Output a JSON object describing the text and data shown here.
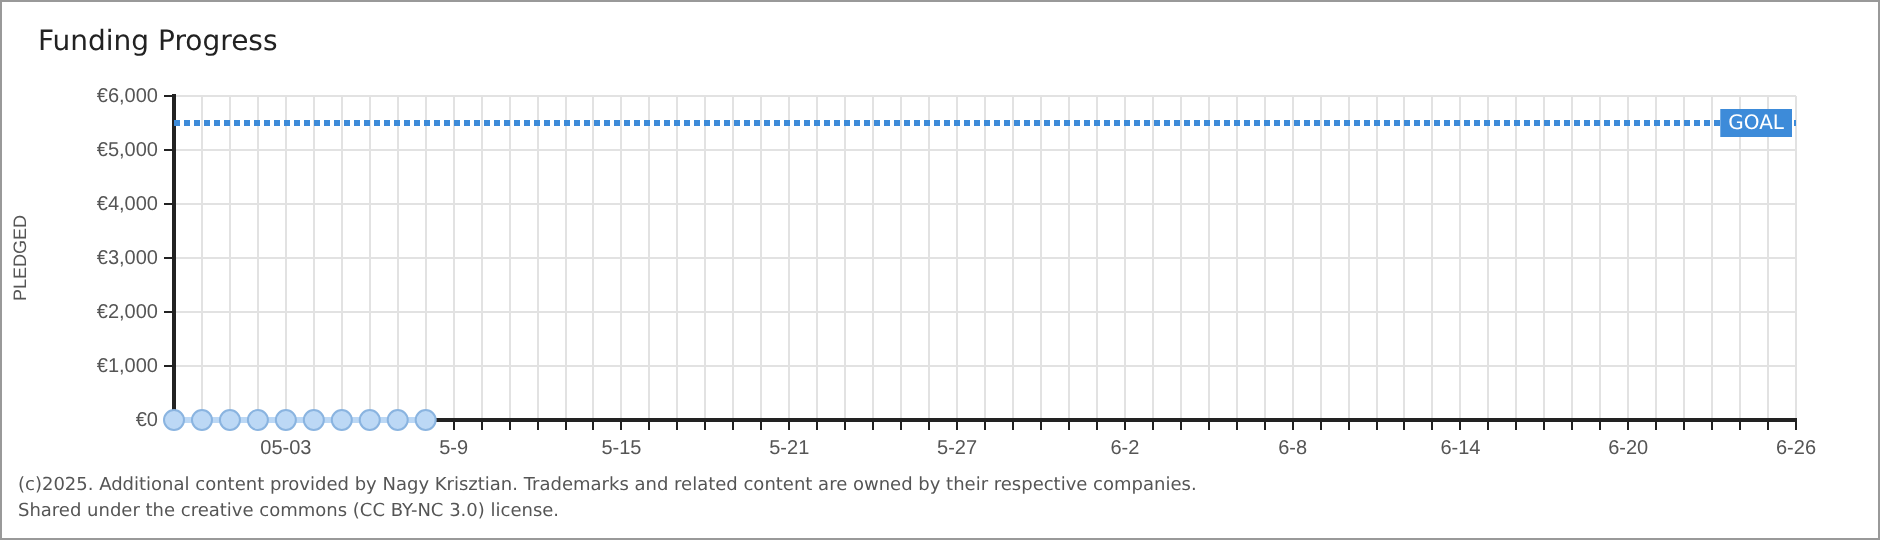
{
  "chart_data": {
    "type": "line",
    "title": "Funding Progress",
    "ylabel": "PLEDGED",
    "x": [
      "--04-29",
      "--04-30",
      "--05-01",
      "--05-02",
      "--05-03",
      "--05-04",
      "--05-05",
      "--05-06",
      "--05-07",
      "--05-08"
    ],
    "series": [
      {
        "color": "#bcd8f5",
        "values": [
          0,
          0,
          0,
          0,
          0,
          0,
          0,
          0,
          0,
          0
        ]
      }
    ],
    "marker": "circle",
    "line_style": "solid",
    "xlim": [
      "--04-29",
      "--06-26"
    ],
    "xticks": [
      {
        "value": "--04-29",
        "label": null
      },
      {
        "value": "--04-30",
        "label": null
      },
      {
        "value": "--05-01",
        "label": null
      },
      {
        "value": "--05-02",
        "label": null
      },
      {
        "value": "--05-03",
        "label": "05-03"
      },
      {
        "value": "--05-04",
        "label": null
      },
      {
        "value": "--05-05",
        "label": null
      },
      {
        "value": "--05-06",
        "label": null
      },
      {
        "value": "--05-07",
        "label": null
      },
      {
        "value": "--05-08",
        "label": null
      },
      {
        "value": "--05-09",
        "label": "5-9"
      },
      {
        "value": "--05-10",
        "label": null
      },
      {
        "value": "--05-11",
        "label": null
      },
      {
        "value": "--05-12",
        "label": null
      },
      {
        "value": "--05-13",
        "label": null
      },
      {
        "value": "--05-14",
        "label": null
      },
      {
        "value": "--05-15",
        "label": "5-15"
      },
      {
        "value": "--05-16",
        "label": null
      },
      {
        "value": "--05-17",
        "label": null
      },
      {
        "value": "--05-18",
        "label": null
      },
      {
        "value": "--05-19",
        "label": null
      },
      {
        "value": "--05-20",
        "label": null
      },
      {
        "value": "--05-21",
        "label": "5-21"
      },
      {
        "value": "--05-22",
        "label": null
      },
      {
        "value": "--05-23",
        "label": null
      },
      {
        "value": "--05-24",
        "label": null
      },
      {
        "value": "--05-25",
        "label": null
      },
      {
        "value": "--05-26",
        "label": null
      },
      {
        "value": "--05-27",
        "label": "5-27"
      },
      {
        "value": "--05-28",
        "label": null
      },
      {
        "value": "--05-29",
        "label": null
      },
      {
        "value": "--05-30",
        "label": null
      },
      {
        "value": "--05-31",
        "label": null
      },
      {
        "value": "--06-01",
        "label": null
      },
      {
        "value": "--06-02",
        "label": "6-2"
      },
      {
        "value": "--06-03",
        "label": null
      },
      {
        "value": "--06-04",
        "label": null
      },
      {
        "value": "--06-05",
        "label": null
      },
      {
        "value": "--06-06",
        "label": null
      },
      {
        "value": "--06-07",
        "label": null
      },
      {
        "value": "--06-08",
        "label": "6-8"
      },
      {
        "value": "--06-09",
        "label": null
      },
      {
        "value": "--06-10",
        "label": null
      },
      {
        "value": "--06-11",
        "label": null
      },
      {
        "value": "--06-12",
        "label": null
      },
      {
        "value": "--06-13",
        "label": null
      },
      {
        "value": "--06-14",
        "label": "6-14"
      },
      {
        "value": "--06-15",
        "label": null
      },
      {
        "value": "--06-16",
        "label": null
      },
      {
        "value": "--06-17",
        "label": null
      },
      {
        "value": "--06-18",
        "label": null
      },
      {
        "value": "--06-19",
        "label": null
      },
      {
        "value": "--06-20",
        "label": "6-20"
      },
      {
        "value": "--06-21",
        "label": null
      },
      {
        "value": "--06-22",
        "label": null
      },
      {
        "value": "--06-23",
        "label": null
      },
      {
        "value": "--06-24",
        "label": null
      },
      {
        "value": "--06-25",
        "label": null
      },
      {
        "value": "--06-26",
        "label": "6-26"
      }
    ],
    "ylim": [
      0,
      6000
    ],
    "yticks": [
      {
        "value": 0,
        "label": "€0"
      },
      {
        "value": 1000,
        "label": "€1,000"
      },
      {
        "value": 2000,
        "label": "€2,000"
      },
      {
        "value": 3000,
        "label": "€3,000"
      },
      {
        "value": 4000,
        "label": "€4,000"
      },
      {
        "value": 5000,
        "label": "€5,000"
      },
      {
        "value": 6000,
        "label": "€6,000"
      }
    ],
    "grid": true,
    "legend": false,
    "ref_lines": [
      {
        "axis": "y",
        "value": 5500,
        "label": "GOAL",
        "color": "#3d8bd9",
        "line_style": "dotted"
      }
    ],
    "annotations": [
      "(c)2025. Additional content provided by Nagy Krisztian. Trademarks and related content are owned by their respective companies.",
      "Shared under the creative commons (CC BY-NC 3.0) license."
    ]
  }
}
